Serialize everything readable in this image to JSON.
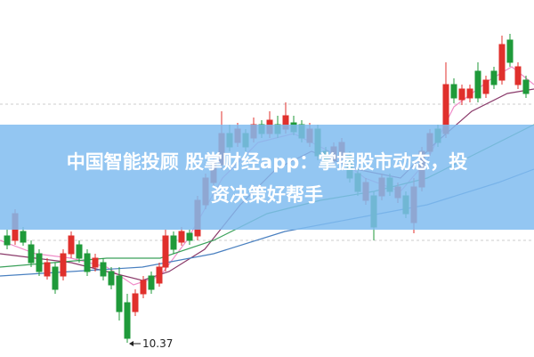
{
  "banner": {
    "line_1": "中国智能投顾 股掌财经app：掌握股市动态，投",
    "line_2": "资决策好帮手"
  },
  "chart": {
    "low_label": "10.37"
  }
}
